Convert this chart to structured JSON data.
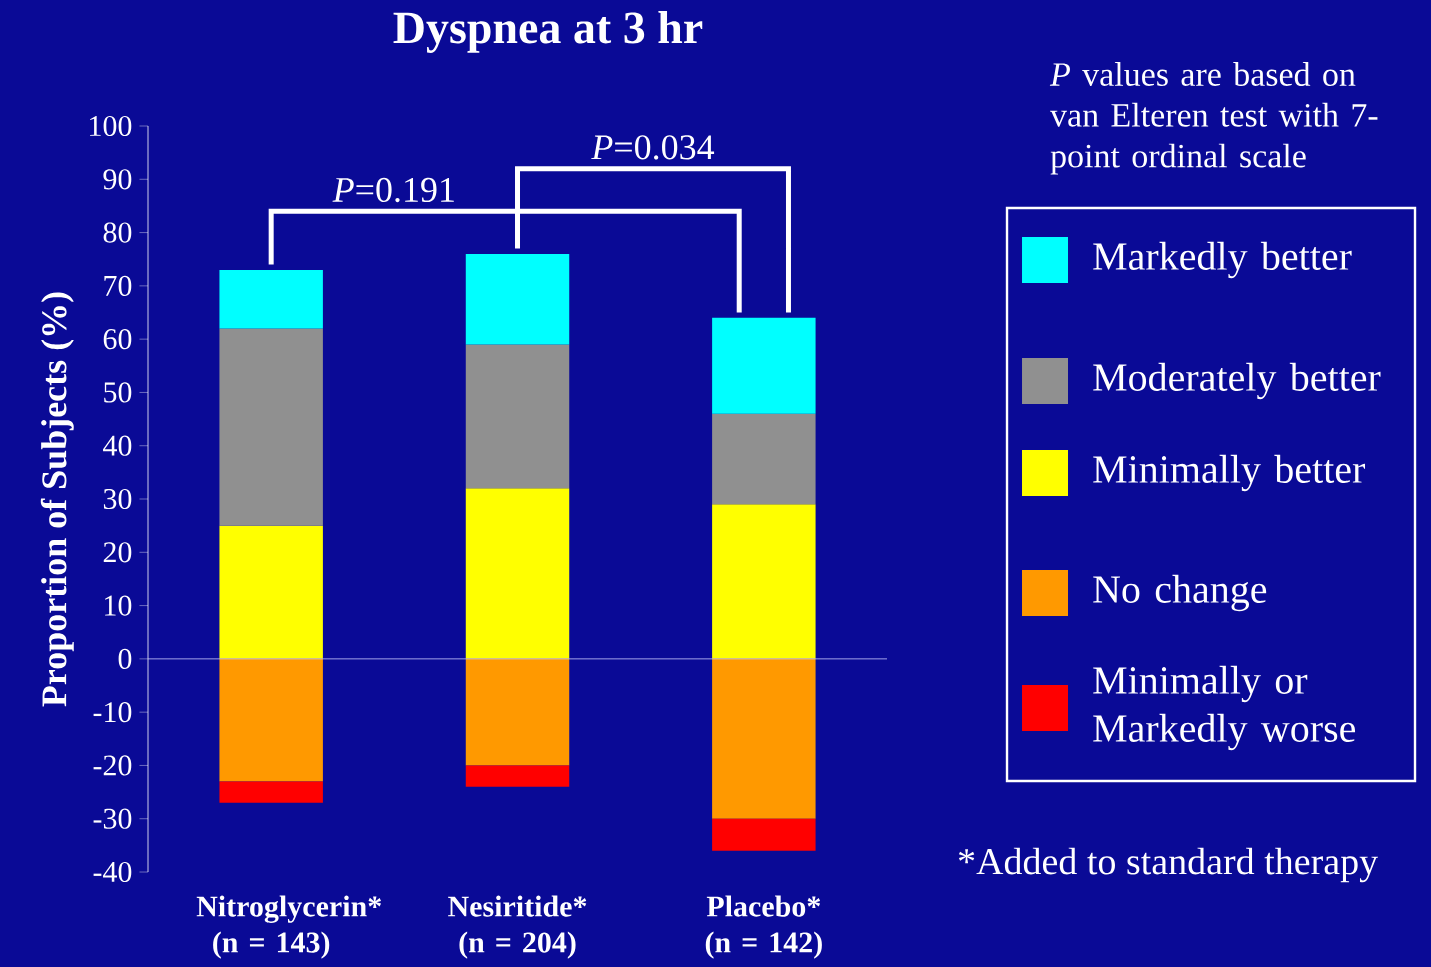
{
  "chart_data": {
    "type": "bar",
    "stacked": true,
    "title": "Dyspnea at 3 hr",
    "ylabel": "Proportion of Subjects (%)",
    "categories": [
      "Nitroglycerin* (n = 143)",
      "Nesiritide* (n = 204)",
      "Placebo* (n = 142)"
    ],
    "series": [
      {
        "name": "Minimally better",
        "color": "#ffff00",
        "values": [
          25,
          32,
          29
        ]
      },
      {
        "name": "Moderately better",
        "color": "#909090",
        "values": [
          37,
          27,
          17
        ]
      },
      {
        "name": "Markedly better",
        "color": "#00ffff",
        "values": [
          11,
          17,
          18
        ]
      },
      {
        "name": "No change",
        "color": "#ff9900",
        "values": [
          -23,
          -20,
          -30
        ]
      },
      {
        "name": "Minimally or Markedly worse",
        "color": "#ff0000",
        "values": [
          -4,
          -4,
          -6
        ]
      }
    ],
    "ylim": [
      -40,
      100
    ],
    "yticks": [
      -40,
      -30,
      -20,
      -10,
      0,
      10,
      20,
      30,
      40,
      50,
      60,
      70,
      80,
      90,
      100
    ],
    "legend": "right",
    "ref_lines": [
      {
        "axis": "y",
        "value": 0,
        "color": "#ccccff"
      }
    ],
    "annotations": [
      "*P*=0.191",
      "*P*=0.034",
      "*P* values are based on van Elteren test with 7-point ordinal scale",
      "*Added to standard therapy"
    ]
  }
}
